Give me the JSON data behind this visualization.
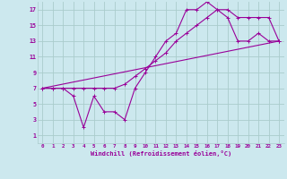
{
  "xlabel": "Windchill (Refroidissement éolien,°C)",
  "bg_color": "#cce8ee",
  "grid_color": "#aacccc",
  "line_color": "#990099",
  "xlim": [
    -0.5,
    23.5
  ],
  "ylim": [
    0,
    18
  ],
  "xticks": [
    0,
    1,
    2,
    3,
    4,
    5,
    6,
    7,
    8,
    9,
    10,
    11,
    12,
    13,
    14,
    15,
    16,
    17,
    18,
    19,
    20,
    21,
    22,
    23
  ],
  "yticks": [
    1,
    3,
    5,
    7,
    9,
    11,
    13,
    15,
    17
  ],
  "line1_x": [
    0,
    1,
    2,
    3,
    4,
    5,
    6,
    7,
    8,
    9,
    10,
    11,
    12,
    13,
    14,
    15,
    16,
    17,
    18,
    19,
    20,
    21,
    22,
    23
  ],
  "line1_y": [
    7,
    7,
    7,
    6,
    2,
    6,
    4,
    4,
    3,
    7,
    9,
    11,
    13,
    14,
    17,
    17,
    18,
    17,
    16,
    13,
    13,
    14,
    13,
    13
  ],
  "line2_x": [
    0,
    1,
    2,
    3,
    4,
    5,
    6,
    7,
    8,
    9,
    10,
    11,
    12,
    13,
    14,
    15,
    16,
    17,
    18,
    19,
    20,
    21,
    22,
    23
  ],
  "line2_y": [
    7,
    7,
    7,
    7,
    7,
    7,
    7,
    7,
    7.5,
    8.5,
    9.5,
    10.5,
    11.5,
    13,
    14,
    15,
    16,
    17,
    17,
    16,
    16,
    16,
    16,
    13
  ],
  "line3_x": [
    0,
    23
  ],
  "line3_y": [
    7,
    13
  ]
}
